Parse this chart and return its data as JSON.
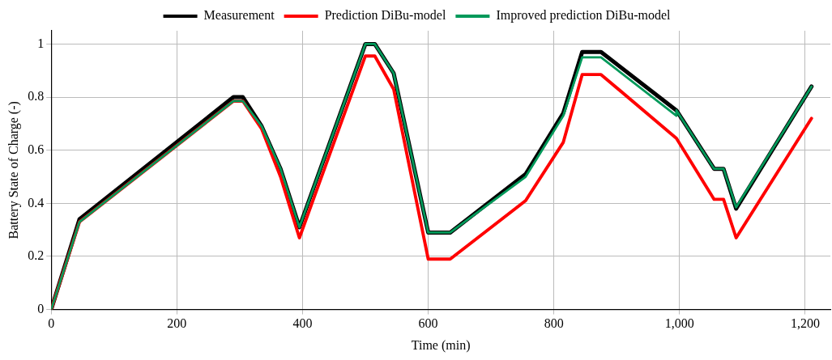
{
  "chart_data": {
    "type": "line",
    "xlabel": "Time (min)",
    "ylabel": "Battery State of Charge (-)",
    "xlim": [
      0,
      1240
    ],
    "xticks": [
      0,
      200,
      400,
      600,
      800,
      {
        "value": 1000,
        "label": "1,000"
      },
      {
        "value": 1200,
        "label": "1,200"
      }
    ],
    "ylim": [
      0,
      1.05
    ],
    "yticks": [
      0,
      0.2,
      0.4,
      0.6,
      0.8,
      1
    ],
    "grid": true,
    "legend": "top",
    "marker": "none",
    "line_style": "solid",
    "series": [
      {
        "name": "Measurement",
        "color": "#000000",
        "x": [
          0,
          45,
          290,
          305,
          335,
          365,
          395,
          500,
          515,
          545,
          600,
          635,
          755,
          815,
          845,
          875,
          995,
          1055,
          1070,
          1090,
          1210
        ],
        "values": [
          0,
          0.34,
          0.8,
          0.8,
          0.69,
          0.53,
          0.31,
          1.0,
          1.0,
          0.89,
          0.29,
          0.29,
          0.51,
          0.74,
          0.97,
          0.97,
          0.75,
          0.53,
          0.53,
          0.38,
          0.84
        ]
      },
      {
        "name": "Prediction DiBu-model",
        "color": "#ff0000",
        "x": [
          0,
          45,
          290,
          305,
          335,
          365,
          395,
          500,
          515,
          545,
          600,
          635,
          755,
          815,
          845,
          875,
          995,
          1055,
          1070,
          1090,
          1210
        ],
        "values": [
          0,
          0.33,
          0.785,
          0.785,
          0.68,
          0.5,
          0.27,
          0.955,
          0.955,
          0.83,
          0.19,
          0.19,
          0.41,
          0.63,
          0.885,
          0.885,
          0.645,
          0.415,
          0.415,
          0.27,
          0.72
        ]
      },
      {
        "name": "Improved prediction DiBu-model",
        "color": "#00995a",
        "x": [
          0,
          45,
          290,
          305,
          335,
          365,
          395,
          500,
          515,
          545,
          600,
          635,
          755,
          815,
          845,
          875,
          995,
          995,
          1055,
          1070,
          1090,
          1210
        ],
        "values": [
          0,
          0.33,
          0.785,
          0.785,
          0.69,
          0.53,
          0.31,
          1.0,
          1.0,
          0.89,
          0.29,
          0.29,
          0.5,
          0.73,
          0.95,
          0.95,
          0.73,
          0.75,
          0.53,
          0.53,
          0.385,
          0.84
        ]
      }
    ]
  }
}
